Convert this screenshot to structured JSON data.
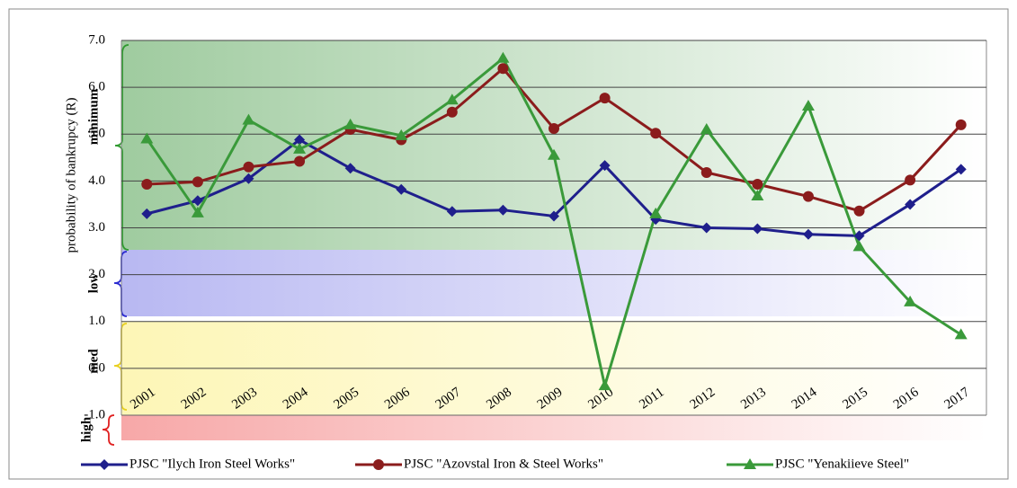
{
  "chart_data": {
    "type": "line",
    "y_axis_label": "probability of bankrupcy (R)",
    "zones": [
      "minimum",
      "low",
      "med",
      "high"
    ],
    "categories": [
      "2001",
      "2002",
      "2003",
      "2004",
      "2005",
      "2006",
      "2007",
      "2008",
      "2009",
      "2010",
      "2011",
      "2012",
      "2013",
      "2014",
      "2015",
      "2016",
      "2017"
    ],
    "series": [
      {
        "name": "PJSC \"Ilych Iron Steel Works\"",
        "color": "#1f1f8c",
        "marker": "diamond",
        "values": [
          3.3,
          3.58,
          4.05,
          4.88,
          4.27,
          3.82,
          3.35,
          3.38,
          3.25,
          4.33,
          3.18,
          3.0,
          2.98,
          2.86,
          2.83,
          3.5,
          4.25
        ]
      },
      {
        "name": "PJSC \"Azovstal Iron & Steel Works\"",
        "color": "#8b1c1c",
        "marker": "circle",
        "values": [
          3.93,
          3.98,
          4.3,
          4.42,
          5.1,
          4.88,
          5.47,
          6.4,
          5.12,
          5.77,
          5.02,
          4.18,
          3.93,
          3.67,
          3.36,
          4.02,
          5.2
        ]
      },
      {
        "name": "PJSC \"Yenakiieve Steel\"",
        "color": "#3a9a3a",
        "marker": "triangle",
        "values": [
          4.9,
          3.32,
          5.3,
          4.68,
          5.2,
          4.97,
          5.73,
          6.62,
          4.55,
          -0.37,
          3.3,
          5.1,
          3.68,
          5.6,
          2.6,
          1.42,
          0.72
        ]
      }
    ],
    "ylim": [
      -1,
      7
    ],
    "yticks": [
      {
        "value": -1,
        "label": "-1.0"
      },
      {
        "value": 0,
        "label": "0.0"
      },
      {
        "value": 1,
        "label": "1.0"
      },
      {
        "value": 2,
        "label": "2.0"
      },
      {
        "value": 3,
        "label": "3.0"
      },
      {
        "value": 4,
        "label": "4.0"
      },
      {
        "value": 5,
        "label": "5.0"
      },
      {
        "value": 6,
        "label": "6.0"
      },
      {
        "value": 7,
        "label": "7.0"
      }
    ],
    "grid": true,
    "legend": "bottom"
  }
}
